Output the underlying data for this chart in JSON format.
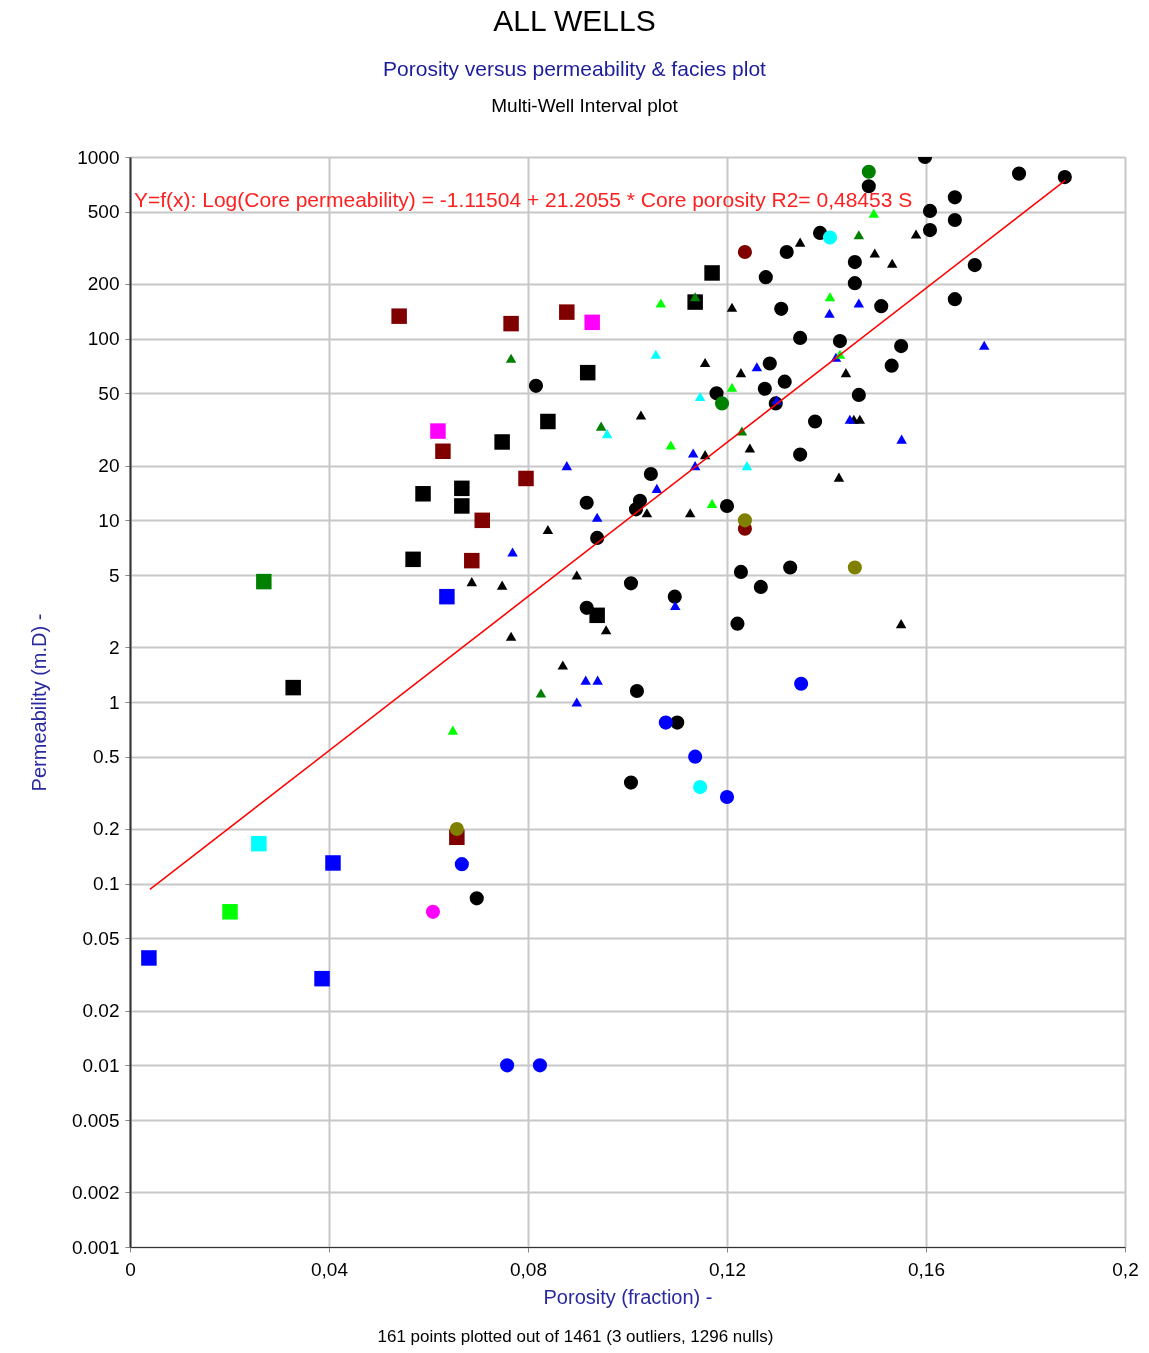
{
  "chart_data": {
    "type": "scatter",
    "title": "ALL WELLS",
    "subtitle": "Porosity versus permeability & facies plot",
    "xlabel": "Porosity (fraction) -",
    "ylabel": "Permeability (m.D) -",
    "log": "y",
    "grid": true,
    "xlim": [
      0,
      0.2
    ],
    "xticks": [
      0,
      {
        "value": 0.04,
        "label": "0,04"
      },
      {
        "value": 0.08,
        "label": "0,08"
      },
      {
        "value": 0.12,
        "label": "0,12"
      },
      {
        "value": 0.16,
        "label": "0,16"
      },
      {
        "value": 0.2,
        "label": "0,2"
      }
    ],
    "ylim": [
      0.001,
      1000
    ],
    "yticks": [
      0.001,
      0.002,
      0.005,
      0.01,
      0.02,
      0.05,
      0.1,
      0.2,
      0.5,
      1,
      2,
      5,
      10,
      20,
      50,
      100,
      200,
      500,
      1000
    ],
    "annotations": [
      "Y=f(x): Log(Core permeability) = -1.11504  +  21.2055 * Core porosity   R2= 0,48453 S",
      "Multi-Well Interval plot",
      "161 points plotted out of 1461 (3 outliers, 1296 nulls)"
    ],
    "series": [
      {
        "color": "#000000",
        "marker": "square",
        "x": [
          0.117,
          0.1136,
          0.092,
          0.084,
          0.0748,
          0.0589,
          0.0667,
          0.0667,
          0.0569,
          0.0328,
          0.0939
        ],
        "values": [
          230,
          159,
          65,
          35,
          27,
          14,
          15,
          12,
          6.1,
          1.2,
          3.0
        ]
      },
      {
        "color": "#000000",
        "marker": "circle",
        "x": [
          0.1598,
          0.1485,
          0.1787,
          0.1879,
          0.1658,
          0.1608,
          0.1608,
          0.1658,
          0.1387,
          0.132,
          0.1278,
          0.1457,
          0.1457,
          0.1698,
          0.1658,
          0.151,
          0.1309,
          0.1427,
          0.1347,
          0.155,
          0.1286,
          0.1531,
          0.1316,
          0.1179,
          0.1276,
          0.1465,
          0.1298,
          0.1377,
          0.1347,
          0.1047,
          0.0918,
          0.12,
          0.1025,
          0.1017,
          0.0939,
          0.1228,
          0.1327,
          0.1268,
          0.1007,
          0.1095,
          0.0918,
          0.1221,
          0.1019,
          0.11,
          0.1007,
          0.0697,
          0.0816
        ],
        "values": [
          1000,
          690,
          810,
          775,
          600,
          505,
          396,
          450,
          382,
          300,
          218,
          264,
          202,
          254,
          165,
          151,
          146,
          97,
          101,
          91,
          73,
          71,
          58,
          50,
          53,
          49,
          44,
          35,
          23,
          18,
          12.5,
          12,
          12.8,
          11.5,
          8,
          5.2,
          5.5,
          4.3,
          4.5,
          3.8,
          3.3,
          2.7,
          1.15,
          0.77,
          0.36,
          0.083,
          55
        ]
      },
      {
        "color": "#000000",
        "marker": "triangle",
        "x": [
          0.1347,
          0.158,
          0.1532,
          0.1497,
          0.121,
          0.1156,
          0.1228,
          0.1439,
          0.1455,
          0.1467,
          0.1425,
          0.1246,
          0.1027,
          0.1156,
          0.1039,
          0.1126,
          0.084,
          0.0898,
          0.0687,
          0.0748,
          0.0957,
          0.0766,
          0.087,
          0.155
        ],
        "values": [
          340,
          377,
          260,
          296,
          149,
          74,
          65,
          65,
          36,
          36,
          17.3,
          25,
          38,
          23,
          11,
          11,
          8.9,
          5,
          4.6,
          4.4,
          2.5,
          2.3,
          1.6,
          2.7
        ]
      },
      {
        "color": "#0000ff",
        "marker": "square",
        "x": [
          0.0038,
          0.0408,
          0.0386,
          0.0637
        ],
        "values": [
          0.039,
          0.13,
          0.03,
          3.8
        ]
      },
      {
        "color": "#0000ff",
        "marker": "circle",
        "x": [
          0.0758,
          0.0824,
          0.0667,
          0.1077,
          0.1136,
          0.12,
          0.1349
        ],
        "values": [
          0.01,
          0.01,
          0.128,
          0.77,
          0.5,
          0.3,
          1.26
        ]
      },
      {
        "color": "#0000ff",
        "marker": "triangle",
        "x": [
          0.1465,
          0.1406,
          0.1717,
          0.126,
          0.1419,
          0.13,
          0.1447,
          0.1551,
          0.1132,
          0.1136,
          0.1059,
          0.0878,
          0.0939,
          0.0769,
          0.1096,
          0.0916,
          0.094,
          0.0898
        ],
        "values": [
          157,
          138,
          92,
          70,
          79,
          46,
          36,
          28,
          23.5,
          20,
          15,
          20,
          10.4,
          6.7,
          3.4,
          1.32,
          1.32,
          1.0
        ]
      },
      {
        "color": "#008000",
        "marker": "triangle",
        "x": [
          0.0766,
          0.0947,
          0.1136,
          0.123,
          0.1465,
          0.0826
        ],
        "values": [
          78,
          33,
          170,
          31,
          373,
          1.12
        ]
      },
      {
        "color": "#008000",
        "marker": "square",
        "x": [
          0.0269
        ],
        "values": [
          4.6
        ]
      },
      {
        "color": "#008000",
        "marker": "circle",
        "x": [
          0.1485,
          0.119
        ],
        "values": [
          830,
          44
        ]
      },
      {
        "color": "#00ff00",
        "marker": "triangle",
        "x": [
          0.1067,
          0.1495,
          0.1407,
          0.1427,
          0.121,
          0.1087,
          0.117,
          0.0649
        ],
        "values": [
          157,
          490,
          170,
          82,
          54,
          26,
          12.4,
          0.7
        ]
      },
      {
        "color": "#00ff00",
        "marker": "square",
        "x": [
          0.0201
        ],
        "values": [
          0.07
        ]
      },
      {
        "color": "#00ffff",
        "marker": "triangle",
        "x": [
          0.1057,
          0.1146,
          0.0959,
          0.124
        ],
        "values": [
          82,
          48,
          30,
          20
        ]
      },
      {
        "color": "#00ffff",
        "marker": "square",
        "x": [
          0.0259
        ],
        "values": [
          0.166
        ]
      },
      {
        "color": "#00ffff",
        "marker": "circle",
        "x": [
          0.1407,
          0.1146
        ],
        "values": [
          360,
          0.34
        ]
      },
      {
        "color": "#800000",
        "marker": "square",
        "x": [
          0.0541,
          0.0766,
          0.0878,
          0.0629,
          0.0796,
          0.0708,
          0.0687,
          0.0657
        ],
        "values": [
          133,
          121,
          140,
          24,
          17,
          10,
          6.0,
          0.18
        ]
      },
      {
        "color": "#800000",
        "marker": "circle",
        "x": [
          0.1236,
          0.1236
        ],
        "values": [
          300,
          9
        ]
      },
      {
        "color": "#ff00ff",
        "marker": "square",
        "x": [
          0.0929,
          0.0619
        ],
        "values": [
          123,
          31
        ]
      },
      {
        "color": "#ff00ff",
        "marker": "circle",
        "x": [
          0.0609
        ],
        "values": [
          0.07
        ]
      },
      {
        "color": "#808000",
        "marker": "circle",
        "x": [
          0.1236,
          0.1457,
          0.0657
        ],
        "values": [
          10,
          5.5,
          0.2
        ]
      },
      {
        "type": "line",
        "color": "#ff0000",
        "line_style": "solid",
        "marker": "none",
        "x": [
          0.004,
          0.188
        ],
        "values": [
          0.093,
          744
        ]
      }
    ]
  }
}
